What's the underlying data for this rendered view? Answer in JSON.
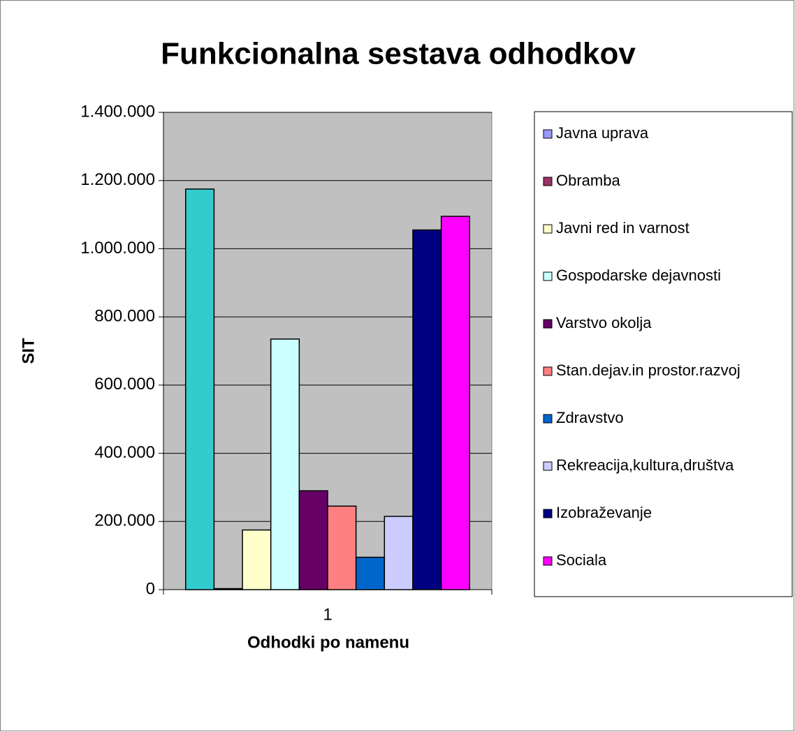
{
  "chart_data": {
    "type": "bar",
    "title": "Funkcionalna sestava odhodkov",
    "xlabel": "Odhodki po namenu",
    "ylabel": "SIT",
    "categories": [
      "1"
    ],
    "series": [
      {
        "name": "Javna uprava",
        "color": "#33cccc",
        "legend_color": "#9999ff",
        "values": [
          1175000
        ]
      },
      {
        "name": "Obramba",
        "color": "#993366",
        "values": [
          3000
        ]
      },
      {
        "name": "Javni red in varnost",
        "color": "#ffffcc",
        "values": [
          175000
        ]
      },
      {
        "name": "Gospodarske dejavnosti",
        "color": "#ccffff",
        "values": [
          735000
        ]
      },
      {
        "name": "Varstvo okolja",
        "color": "#660066",
        "values": [
          290000
        ]
      },
      {
        "name": "Stan.dejav.in prostor.razvoj",
        "color": "#ff8080",
        "values": [
          245000
        ]
      },
      {
        "name": "Zdravstvo",
        "color": "#0066cc",
        "values": [
          95000
        ]
      },
      {
        "name": "Rekreacija,kultura,društva",
        "color": "#ccccff",
        "values": [
          215000
        ]
      },
      {
        "name": "Izobraževanje",
        "color": "#000080",
        "values": [
          1055000
        ]
      },
      {
        "name": "Sociala",
        "color": "#ff00ff",
        "values": [
          1095000
        ]
      }
    ],
    "ylim": [
      0,
      1400000
    ],
    "yticks": [
      0,
      {
        "value": 200000,
        "label": "200.000"
      },
      {
        "value": 400000,
        "label": "400.000"
      },
      {
        "value": 600000,
        "label": "600.000"
      },
      {
        "value": 800000,
        "label": "800.000"
      },
      {
        "value": 1000000,
        "label": "1.000.000"
      },
      {
        "value": 1200000,
        "label": "1.200.000"
      },
      {
        "value": 1400000,
        "label": "1.400.000"
      }
    ],
    "grid": true,
    "plot_background": "#c0c0c0",
    "legend": "right"
  }
}
